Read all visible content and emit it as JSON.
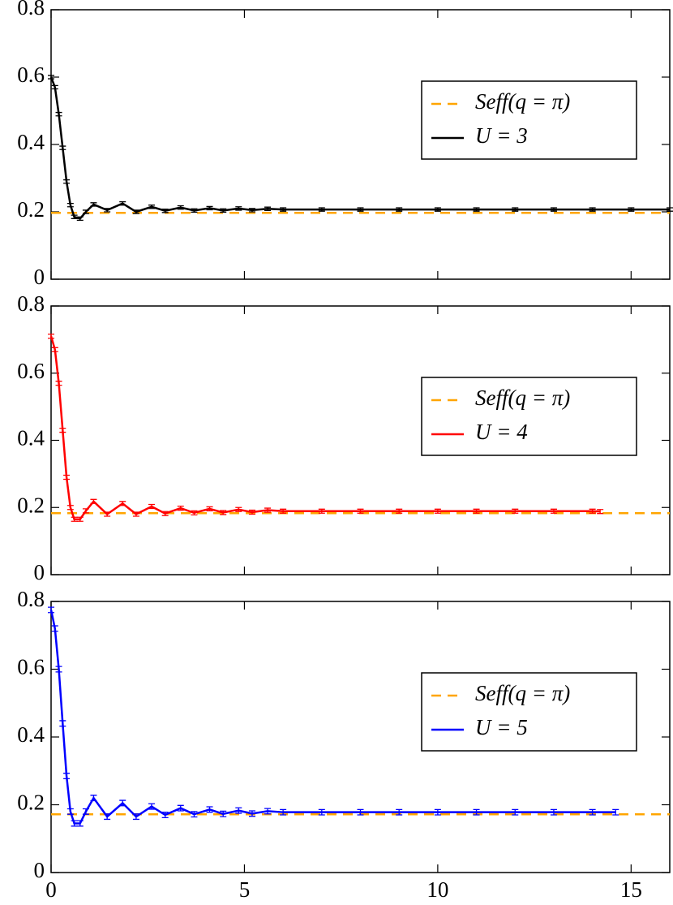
{
  "chart_data": [
    {
      "type": "line",
      "xlim": [
        0,
        16
      ],
      "xticks": [
        0,
        5,
        10,
        15
      ],
      "ylim": [
        0,
        0.8
      ],
      "yticks": [
        0,
        0.2,
        0.4,
        0.6,
        0.8
      ],
      "legend": "right",
      "series": [
        {
          "name": "Seff(q = π)",
          "color": "#ffa500",
          "dashed": true,
          "x": [
            0,
            16
          ],
          "values": [
            0.197,
            0.197
          ]
        },
        {
          "name": "U = 3",
          "color": "#000000",
          "x": [
            0,
            0.1,
            0.2,
            0.3,
            0.4,
            0.5,
            0.6,
            0.75,
            0.9,
            1.1,
            1.45,
            1.85,
            2.2,
            2.6,
            2.95,
            3.35,
            3.7,
            4.1,
            4.45,
            4.85,
            5.2,
            5.6,
            6,
            7,
            8,
            9,
            10,
            11,
            12,
            13,
            14,
            15,
            16
          ],
          "values": [
            0.6,
            0.57,
            0.49,
            0.39,
            0.29,
            0.22,
            0.185,
            0.18,
            0.2,
            0.222,
            0.205,
            0.225,
            0.2,
            0.215,
            0.203,
            0.213,
            0.204,
            0.211,
            0.204,
            0.21,
            0.205,
            0.209,
            0.207,
            0.207,
            0.207,
            0.207,
            0.207,
            0.207,
            0.207,
            0.207,
            0.207,
            0.207,
            0.207
          ],
          "errors": [
            0.005,
            0.005,
            0.005,
            0.005,
            0.005,
            0.005,
            0.005,
            0.005,
            0.005,
            0.005,
            0.005,
            0.005,
            0.005,
            0.005,
            0.005,
            0.005,
            0.005,
            0.005,
            0.005,
            0.005,
            0.005,
            0.005,
            0.005,
            0.005,
            0.005,
            0.005,
            0.005,
            0.005,
            0.005,
            0.005,
            0.005,
            0.005,
            0.005
          ]
        }
      ]
    },
    {
      "type": "line",
      "xlim": [
        0,
        16
      ],
      "xticks": [
        0,
        5,
        10,
        15
      ],
      "ylim": [
        0,
        0.8
      ],
      "yticks": [
        0,
        0.2,
        0.4,
        0.6,
        0.8
      ],
      "legend": "right",
      "series": [
        {
          "name": "Seff(q = π)",
          "color": "#ffa500",
          "dashed": true,
          "x": [
            0,
            16
          ],
          "values": [
            0.183,
            0.183
          ]
        },
        {
          "name": "U = 4",
          "color": "#ff0000",
          "x": [
            0,
            0.1,
            0.2,
            0.3,
            0.4,
            0.5,
            0.6,
            0.75,
            0.9,
            1.1,
            1.45,
            1.85,
            2.2,
            2.6,
            2.95,
            3.35,
            3.7,
            4.1,
            4.45,
            4.85,
            5.2,
            5.6,
            6,
            7,
            8,
            9,
            10,
            11,
            12,
            13,
            14,
            14.2
          ],
          "values": [
            0.71,
            0.67,
            0.57,
            0.43,
            0.29,
            0.2,
            0.165,
            0.165,
            0.19,
            0.218,
            0.18,
            0.212,
            0.18,
            0.203,
            0.182,
            0.198,
            0.184,
            0.196,
            0.185,
            0.194,
            0.186,
            0.192,
            0.189,
            0.189,
            0.189,
            0.189,
            0.189,
            0.189,
            0.189,
            0.189,
            0.189,
            0.188
          ],
          "errors": [
            0.006,
            0.006,
            0.006,
            0.006,
            0.006,
            0.006,
            0.006,
            0.006,
            0.006,
            0.006,
            0.006,
            0.006,
            0.006,
            0.006,
            0.006,
            0.006,
            0.006,
            0.006,
            0.006,
            0.006,
            0.006,
            0.006,
            0.006,
            0.006,
            0.006,
            0.006,
            0.006,
            0.006,
            0.006,
            0.006,
            0.006,
            0.006
          ]
        }
      ]
    },
    {
      "type": "line",
      "xlim": [
        0,
        16
      ],
      "xticks": [
        0,
        5,
        10,
        15
      ],
      "ylim": [
        0,
        0.8
      ],
      "yticks": [
        0,
        0.2,
        0.4,
        0.6,
        0.8
      ],
      "legend": "right",
      "series": [
        {
          "name": "Seff(q = π)",
          "color": "#ffa500",
          "dashed": true,
          "x": [
            0,
            16
          ],
          "values": [
            0.172,
            0.172
          ]
        },
        {
          "name": "U = 5",
          "color": "#0000ff",
          "x": [
            0,
            0.1,
            0.2,
            0.3,
            0.4,
            0.5,
            0.6,
            0.75,
            0.9,
            1.1,
            1.45,
            1.85,
            2.2,
            2.6,
            2.95,
            3.35,
            3.7,
            4.1,
            4.45,
            4.85,
            5.2,
            5.6,
            6,
            7,
            8,
            9,
            10,
            11,
            12,
            13,
            14,
            14.6
          ],
          "values": [
            0.775,
            0.72,
            0.6,
            0.44,
            0.285,
            0.18,
            0.145,
            0.145,
            0.18,
            0.22,
            0.165,
            0.205,
            0.165,
            0.195,
            0.17,
            0.19,
            0.172,
            0.186,
            0.173,
            0.183,
            0.174,
            0.181,
            0.178,
            0.178,
            0.178,
            0.178,
            0.178,
            0.178,
            0.178,
            0.178,
            0.178,
            0.178
          ],
          "errors": [
            0.008,
            0.008,
            0.008,
            0.008,
            0.008,
            0.008,
            0.008,
            0.008,
            0.008,
            0.008,
            0.008,
            0.008,
            0.008,
            0.008,
            0.008,
            0.008,
            0.008,
            0.008,
            0.008,
            0.008,
            0.008,
            0.008,
            0.008,
            0.008,
            0.008,
            0.008,
            0.008,
            0.008,
            0.008,
            0.008,
            0.008,
            0.008
          ]
        }
      ]
    }
  ]
}
